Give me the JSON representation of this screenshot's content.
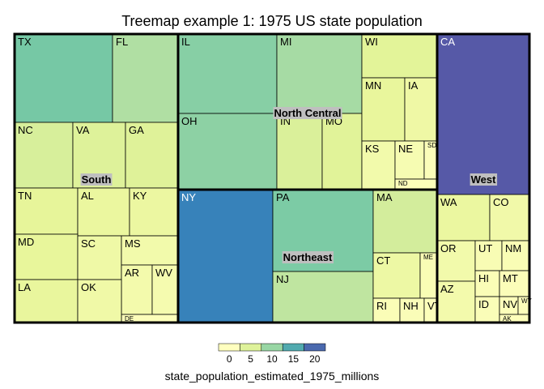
{
  "chart_data": {
    "type": "treemap",
    "title": "Treemap example 1: 1975 US state population",
    "legend": {
      "title": "state_population_estimated_1975_millions",
      "ticks": [
        "0",
        "5",
        "10",
        "15",
        "20"
      ],
      "range": [
        0,
        20
      ],
      "position": "bottom"
    },
    "colors": {
      "scale": [
        "#ffffbf",
        "#e6f598",
        "#abdda4",
        "#66c2a5",
        "#3288bd",
        "#5e4fa2"
      ],
      "border": "#000000",
      "region_label_bg": "#bfbfbf"
    },
    "regions": [
      {
        "name": "South",
        "states": [
          {
            "label": "TX",
            "value": 12.2
          },
          {
            "label": "FL",
            "value": 8.4
          },
          {
            "label": "NC",
            "value": 5.5
          },
          {
            "label": "VA",
            "value": 5.0
          },
          {
            "label": "GA",
            "value": 4.9
          },
          {
            "label": "TN",
            "value": 4.2
          },
          {
            "label": "AL",
            "value": 3.6
          },
          {
            "label": "KY",
            "value": 3.4
          },
          {
            "label": "MD",
            "value": 4.1
          },
          {
            "label": "SC",
            "value": 2.8
          },
          {
            "label": "MS",
            "value": 2.3
          },
          {
            "label": "AR",
            "value": 2.1
          },
          {
            "label": "WV",
            "value": 1.8
          },
          {
            "label": "DE",
            "value": 0.6
          },
          {
            "label": "LA",
            "value": 3.8
          },
          {
            "label": "OK",
            "value": 2.7
          }
        ]
      },
      {
        "name": "North Central",
        "states": [
          {
            "label": "IL",
            "value": 11.1
          },
          {
            "label": "MI",
            "value": 9.1
          },
          {
            "label": "OH",
            "value": 10.7
          },
          {
            "label": "IN",
            "value": 5.3
          },
          {
            "label": "MO",
            "value": 4.8
          },
          {
            "label": "WI",
            "value": 4.6
          },
          {
            "label": "MN",
            "value": 3.9
          },
          {
            "label": "IA",
            "value": 2.9
          },
          {
            "label": "KS",
            "value": 2.3
          },
          {
            "label": "NE",
            "value": 1.5
          },
          {
            "label": "SD",
            "value": 0.7
          },
          {
            "label": "ND",
            "value": 0.6
          }
        ]
      },
      {
        "name": "Northeast",
        "states": [
          {
            "label": "NY",
            "value": 18.1
          },
          {
            "label": "PA",
            "value": 11.8
          },
          {
            "label": "NJ",
            "value": 7.3
          },
          {
            "label": "MA",
            "value": 5.8
          },
          {
            "label": "CT",
            "value": 3.1
          },
          {
            "label": "ME",
            "value": 1.1
          },
          {
            "label": "RI",
            "value": 0.9
          },
          {
            "label": "NH",
            "value": 0.8
          },
          {
            "label": "VT",
            "value": 0.5
          }
        ]
      },
      {
        "name": "West",
        "states": [
          {
            "label": "CA",
            "value": 21.2
          },
          {
            "label": "WA",
            "value": 3.5
          },
          {
            "label": "CO",
            "value": 2.5
          },
          {
            "label": "OR",
            "value": 2.3
          },
          {
            "label": "AZ",
            "value": 2.2
          },
          {
            "label": "UT",
            "value": 1.2
          },
          {
            "label": "NM",
            "value": 1.1
          },
          {
            "label": "HI",
            "value": 0.9
          },
          {
            "label": "MT",
            "value": 0.7
          },
          {
            "label": "ID",
            "value": 0.8
          },
          {
            "label": "NV",
            "value": 0.6
          },
          {
            "label": "WY",
            "value": 0.4
          },
          {
            "label": "AK",
            "value": 0.4
          }
        ]
      }
    ]
  }
}
